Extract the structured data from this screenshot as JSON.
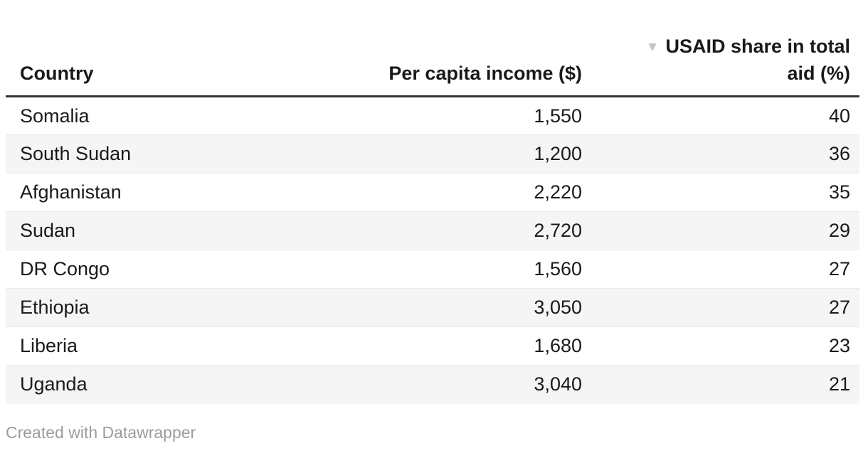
{
  "table": {
    "columns": [
      {
        "label": "Country",
        "align": "left"
      },
      {
        "label": "Per capita income ($)",
        "align": "right"
      },
      {
        "label_line1": "USAID share in total",
        "label_line2": "aid (%)",
        "align": "right",
        "sorted": "desc"
      }
    ],
    "rows": [
      {
        "country": "Somalia",
        "income": "1,550",
        "share": "40"
      },
      {
        "country": "South Sudan",
        "income": "1,200",
        "share": "36"
      },
      {
        "country": "Afghanistan",
        "income": "2,220",
        "share": "35"
      },
      {
        "country": "Sudan",
        "income": "2,720",
        "share": "29"
      },
      {
        "country": "DR Congo",
        "income": "1,560",
        "share": "27"
      },
      {
        "country": "Ethiopia",
        "income": "3,050",
        "share": "27"
      },
      {
        "country": "Liberia",
        "income": "1,680",
        "share": "23"
      },
      {
        "country": "Uganda",
        "income": "3,040",
        "share": "21"
      }
    ]
  },
  "icons": {
    "sort_desc": "▼"
  },
  "footer": {
    "credit": "Created with Datawrapper"
  },
  "colors": {
    "text": "#1a1a1a",
    "header_rule": "#333333",
    "row_stripe": "#f5f5f5",
    "row_divider": "#e9e9e9",
    "sort_arrow": "#c4c4c4",
    "footer_text": "#9c9c9c",
    "background": "#ffffff"
  },
  "chart_data": {
    "type": "table",
    "columns": [
      "Country",
      "Per capita income ($)",
      "USAID share in total aid (%)"
    ],
    "rows": [
      [
        "Somalia",
        1550,
        40
      ],
      [
        "South Sudan",
        1200,
        36
      ],
      [
        "Afghanistan",
        2220,
        35
      ],
      [
        "Sudan",
        2720,
        29
      ],
      [
        "DR Congo",
        1560,
        27
      ],
      [
        "Ethiopia",
        3050,
        27
      ],
      [
        "Liberia",
        1680,
        23
      ],
      [
        "Uganda",
        3040,
        21
      ]
    ],
    "sort": {
      "column": "USAID share in total aid (%)",
      "order": "desc"
    },
    "striped": true,
    "credit": "Created with Datawrapper"
  }
}
